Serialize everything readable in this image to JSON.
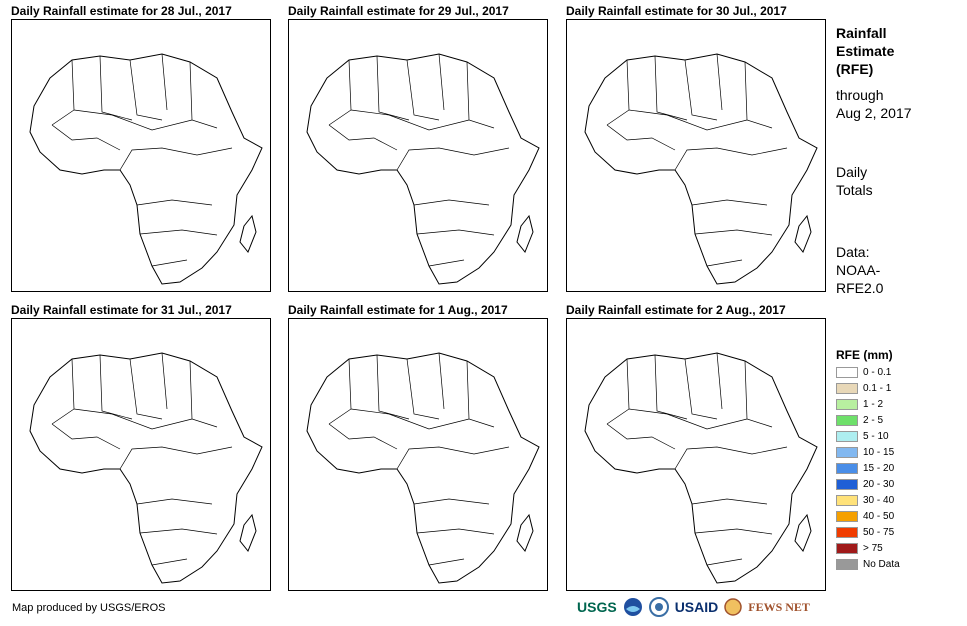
{
  "panels": [
    {
      "title": "Daily Rainfall estimate for 28 Jul., 2017"
    },
    {
      "title": "Daily Rainfall estimate for 29 Jul., 2017"
    },
    {
      "title": "Daily Rainfall estimate for 30 Jul., 2017"
    },
    {
      "title": "Daily Rainfall estimate for 31 Jul., 2017"
    },
    {
      "title": "Daily Rainfall estimate for 1 Aug., 2017"
    },
    {
      "title": "Daily Rainfall estimate for 2 Aug., 2017"
    }
  ],
  "side": {
    "title_lines": [
      "Rainfall",
      "Estimate",
      "(RFE)"
    ],
    "through_lines": [
      "through",
      "Aug 2, 2017"
    ],
    "totals_lines": [
      "Daily",
      "Totals"
    ],
    "source_lines": [
      "Data:",
      "NOAA-",
      "RFE2.0"
    ]
  },
  "legend": {
    "title": "RFE (mm)",
    "items": [
      {
        "label": "0 - 0.1",
        "color": "#ffffff"
      },
      {
        "label": "0.1 - 1",
        "color": "#e8d8b8"
      },
      {
        "label": "1 - 2",
        "color": "#b8f0a0"
      },
      {
        "label": "2 - 5",
        "color": "#6ee06a"
      },
      {
        "label": "5 - 10",
        "color": "#aeeef0"
      },
      {
        "label": "10 - 15",
        "color": "#82b8f0"
      },
      {
        "label": "15 - 20",
        "color": "#4a8ee8"
      },
      {
        "label": "20 - 30",
        "color": "#1f5fd6"
      },
      {
        "label": "30 - 40",
        "color": "#ffe27a"
      },
      {
        "label": "40 - 50",
        "color": "#f5a000"
      },
      {
        "label": "50 - 75",
        "color": "#f03c00"
      },
      {
        "label": "> 75",
        "color": "#a01a1a"
      },
      {
        "label": "No Data",
        "color": "#999999"
      }
    ]
  },
  "footer": {
    "credit": "Map produced by USGS/EROS"
  },
  "logos": {
    "usgs": "USGS",
    "usaid": "USAID",
    "fewsnet": "FEWS NET"
  }
}
